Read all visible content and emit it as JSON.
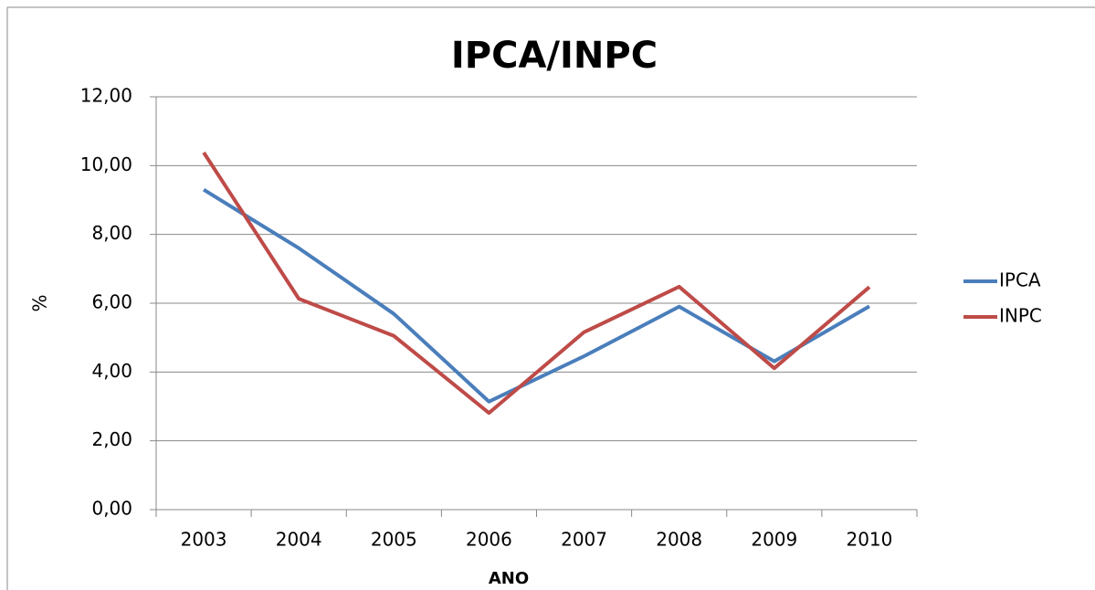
{
  "chart_data": {
    "type": "line",
    "title": "IPCA/INPC",
    "x_label": "ANO",
    "y_label": "%",
    "categories": [
      "2003",
      "2004",
      "2005",
      "2006",
      "2007",
      "2008",
      "2009",
      "2010"
    ],
    "series": [
      {
        "name": "IPCA",
        "color": "#4a7ebb",
        "values": [
          9.3,
          7.6,
          5.69,
          3.14,
          4.46,
          5.9,
          4.31,
          5.91
        ]
      },
      {
        "name": "INPC",
        "color": "#be4b48",
        "values": [
          10.38,
          6.13,
          5.05,
          2.81,
          5.16,
          6.48,
          4.11,
          6.47
        ]
      }
    ],
    "ylim": [
      0,
      12
    ],
    "yticks": [
      {
        "value": 0,
        "label": "0,00"
      },
      {
        "value": 2,
        "label": "2,00"
      },
      {
        "value": 4,
        "label": "4,00"
      },
      {
        "value": 6,
        "label": "6,00"
      },
      {
        "value": 8,
        "label": "8,00"
      },
      {
        "value": 10,
        "label": "10,00"
      },
      {
        "value": 12,
        "label": "12,00"
      }
    ],
    "grid": true,
    "legend": "right"
  }
}
